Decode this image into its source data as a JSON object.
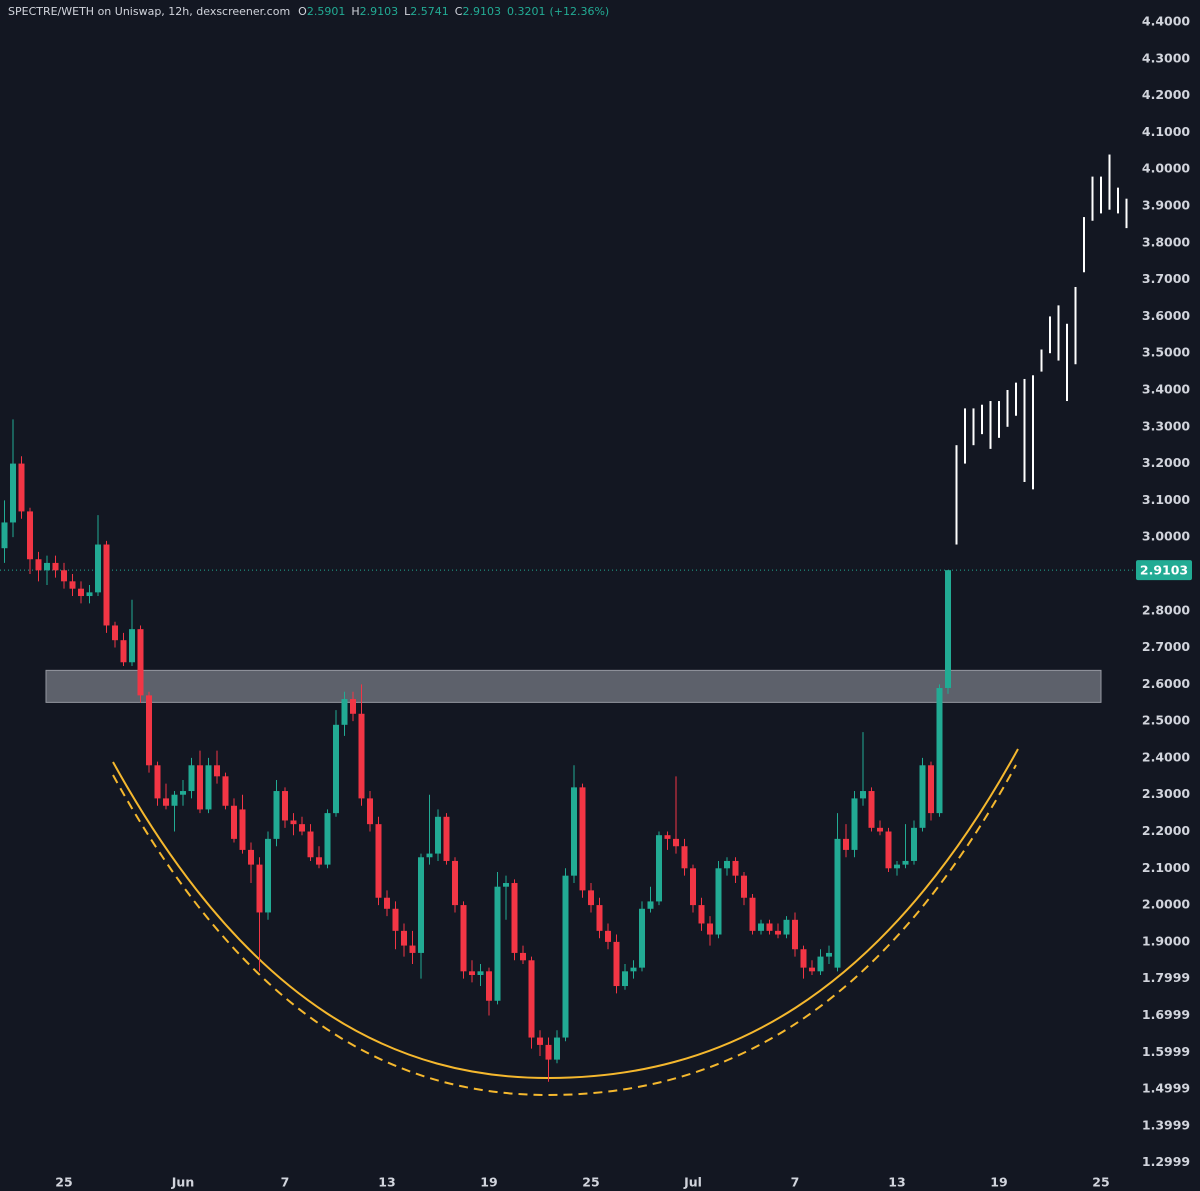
{
  "chart_data": {
    "type": "candlestick",
    "title": "SPECTRE/WETH on Uniswap, 12h, dexscreener.com",
    "ohlc_labels": [
      "O",
      "H",
      "L",
      "C"
    ],
    "change": 0.3201,
    "change_label": "(+12.36%)",
    "up_color": "#22ab94",
    "down_color": "#f23645",
    "projection_color": "#ffffff",
    "background": "#131722",
    "zone": [
      2.551,
      2.638
    ],
    "zone_color": "#6b6e78",
    "ylim": [
      1.28,
      4.46
    ],
    "yticks": [
      {
        "value": 4.4,
        "label": "4.4000"
      },
      {
        "value": 4.3,
        "label": "4.3000"
      },
      {
        "value": 4.2,
        "label": "4.2000"
      },
      {
        "value": 4.1,
        "label": "4.1000"
      },
      {
        "value": 4.0,
        "label": "4.0000"
      },
      {
        "value": 3.9,
        "label": "3.9000"
      },
      {
        "value": 3.8,
        "label": "3.8000"
      },
      {
        "value": 3.7,
        "label": "3.7000"
      },
      {
        "value": 3.6,
        "label": "3.6000"
      },
      {
        "value": 3.5,
        "label": "3.5000"
      },
      {
        "value": 3.4,
        "label": "3.4000"
      },
      {
        "value": 3.3,
        "label": "3.3000"
      },
      {
        "value": 3.2,
        "label": "3.2000"
      },
      {
        "value": 3.1,
        "label": "3.1000"
      },
      {
        "value": 3.0,
        "label": "3.0000"
      },
      {
        "value": 2.8,
        "label": "2.8000"
      },
      {
        "value": 2.7,
        "label": "2.7000"
      },
      {
        "value": 2.6,
        "label": "2.6000"
      },
      {
        "value": 2.5,
        "label": "2.5000"
      },
      {
        "value": 2.4,
        "label": "2.4000"
      },
      {
        "value": 2.3,
        "label": "2.3000"
      },
      {
        "value": 2.2,
        "label": "2.2000"
      },
      {
        "value": 2.1,
        "label": "2.1000"
      },
      {
        "value": 2.0,
        "label": "2.0000"
      },
      {
        "value": 1.9,
        "label": "1.9000"
      },
      1.7999,
      1.6999,
      1.5999,
      1.4999,
      1.3999,
      1.2999
    ],
    "categories": [
      null,
      null,
      null,
      null,
      null,
      null,
      null,
      "25",
      null,
      null,
      null,
      null,
      null,
      null,
      null,
      null,
      null,
      null,
      null,
      null,
      null,
      "Jun",
      null,
      null,
      null,
      null,
      null,
      null,
      null,
      null,
      null,
      null,
      null,
      "7",
      null,
      null,
      null,
      null,
      null,
      null,
      null,
      null,
      null,
      null,
      null,
      "13",
      null,
      null,
      null,
      null,
      null,
      null,
      null,
      null,
      null,
      null,
      null,
      "19",
      null,
      null,
      null,
      null,
      null,
      null,
      null,
      null,
      null,
      null,
      null,
      "25",
      null,
      null,
      null,
      null,
      null,
      null,
      null,
      null,
      null,
      null,
      null,
      "Jul",
      null,
      null,
      null,
      null,
      null,
      null,
      null,
      null,
      null,
      null,
      null,
      "7",
      null,
      null,
      null,
      null,
      null,
      null,
      null,
      null,
      null,
      null,
      null,
      "13",
      null,
      null,
      null,
      null,
      null,
      null,
      null,
      null,
      null,
      null,
      null,
      "19",
      null,
      null,
      null,
      null,
      null,
      null,
      null,
      null,
      null,
      null,
      null,
      "25",
      null,
      null,
      null
    ],
    "candles": [
      [
        2.97,
        3.1,
        2.93,
        3.04
      ],
      [
        3.04,
        3.32,
        3.0,
        3.2
      ],
      [
        3.2,
        3.22,
        3.05,
        3.07
      ],
      [
        3.07,
        3.08,
        2.9,
        2.94
      ],
      [
        2.94,
        2.96,
        2.88,
        2.91
      ],
      [
        2.91,
        2.95,
        2.87,
        2.93
      ],
      [
        2.93,
        2.95,
        2.89,
        2.91
      ],
      [
        2.91,
        2.93,
        2.86,
        2.88
      ],
      [
        2.88,
        2.9,
        2.84,
        2.86
      ],
      [
        2.86,
        2.88,
        2.82,
        2.84
      ],
      [
        2.84,
        2.87,
        2.82,
        2.85
      ],
      [
        2.85,
        3.06,
        2.84,
        2.98
      ],
      [
        2.98,
        2.99,
        2.74,
        2.76
      ],
      [
        2.76,
        2.77,
        2.7,
        2.72
      ],
      [
        2.72,
        2.74,
        2.65,
        2.66
      ],
      [
        2.66,
        2.83,
        2.65,
        2.75
      ],
      [
        2.75,
        2.76,
        2.55,
        2.57
      ],
      [
        2.57,
        2.58,
        2.36,
        2.38
      ],
      [
        2.38,
        2.39,
        2.27,
        2.29
      ],
      [
        2.29,
        2.33,
        2.26,
        2.27
      ],
      [
        2.27,
        2.31,
        2.2,
        2.3
      ],
      [
        2.3,
        2.34,
        2.27,
        2.31
      ],
      [
        2.31,
        2.4,
        2.29,
        2.38
      ],
      [
        2.38,
        2.42,
        2.25,
        2.26
      ],
      [
        2.26,
        2.4,
        2.25,
        2.38
      ],
      [
        2.38,
        2.42,
        2.33,
        2.35
      ],
      [
        2.35,
        2.36,
        2.26,
        2.27
      ],
      [
        2.27,
        2.29,
        2.17,
        2.18
      ],
      [
        2.26,
        2.3,
        2.14,
        2.15
      ],
      [
        2.15,
        2.17,
        2.06,
        2.11
      ],
      [
        2.11,
        2.13,
        1.82,
        1.98
      ],
      [
        1.98,
        2.2,
        1.96,
        2.18
      ],
      [
        2.18,
        2.34,
        2.16,
        2.31
      ],
      [
        2.31,
        2.32,
        2.21,
        2.23
      ],
      [
        2.23,
        2.25,
        2.19,
        2.22
      ],
      [
        2.22,
        2.24,
        2.19,
        2.2
      ],
      [
        2.2,
        2.22,
        2.12,
        2.13
      ],
      [
        2.13,
        2.16,
        2.1,
        2.11
      ],
      [
        2.11,
        2.26,
        2.1,
        2.25
      ],
      [
        2.25,
        2.53,
        2.24,
        2.49
      ],
      [
        2.49,
        2.58,
        2.46,
        2.56
      ],
      [
        2.56,
        2.58,
        2.5,
        2.52
      ],
      [
        2.52,
        2.6,
        2.27,
        2.29
      ],
      [
        2.29,
        2.31,
        2.2,
        2.22
      ],
      [
        2.22,
        2.24,
        2.0,
        2.02
      ],
      [
        2.02,
        2.04,
        1.97,
        1.99
      ],
      [
        1.99,
        2.01,
        1.88,
        1.93
      ],
      [
        1.93,
        1.95,
        1.86,
        1.89
      ],
      [
        1.89,
        1.93,
        1.84,
        1.87
      ],
      [
        1.87,
        2.14,
        1.8,
        2.13
      ],
      [
        2.13,
        2.3,
        2.11,
        2.14
      ],
      [
        2.14,
        2.26,
        2.12,
        2.24
      ],
      [
        2.24,
        2.25,
        2.11,
        2.12
      ],
      [
        2.12,
        2.13,
        1.98,
        2.0
      ],
      [
        2.0,
        2.01,
        1.8,
        1.82
      ],
      [
        1.82,
        1.85,
        1.79,
        1.81
      ],
      [
        1.81,
        1.84,
        1.78,
        1.82
      ],
      [
        1.82,
        1.83,
        1.7,
        1.74
      ],
      [
        1.74,
        2.09,
        1.73,
        2.05
      ],
      [
        2.05,
        2.08,
        1.96,
        2.06
      ],
      [
        2.06,
        2.07,
        1.85,
        1.87
      ],
      [
        1.87,
        1.89,
        1.84,
        1.85
      ],
      [
        1.85,
        1.86,
        1.61,
        1.64
      ],
      [
        1.64,
        1.66,
        1.59,
        1.62
      ],
      [
        1.62,
        1.64,
        1.52,
        1.58
      ],
      [
        1.58,
        1.66,
        1.57,
        1.64
      ],
      [
        1.64,
        2.1,
        1.63,
        2.08
      ],
      [
        2.08,
        2.38,
        2.06,
        2.32
      ],
      [
        2.32,
        2.33,
        2.02,
        2.04
      ],
      [
        2.04,
        2.06,
        1.98,
        2.0
      ],
      [
        2.0,
        2.02,
        1.91,
        1.93
      ],
      [
        1.93,
        1.95,
        1.88,
        1.9
      ],
      [
        1.9,
        1.92,
        1.76,
        1.78
      ],
      [
        1.78,
        1.84,
        1.77,
        1.82
      ],
      [
        1.82,
        1.85,
        1.8,
        1.83
      ],
      [
        1.83,
        2.01,
        1.82,
        1.99
      ],
      [
        1.99,
        2.05,
        1.98,
        2.01
      ],
      [
        2.01,
        2.2,
        2.0,
        2.19
      ],
      [
        2.19,
        2.2,
        2.15,
        2.18
      ],
      [
        2.18,
        2.35,
        2.14,
        2.16
      ],
      [
        2.16,
        2.18,
        2.08,
        2.1
      ],
      [
        2.1,
        2.11,
        1.98,
        2.0
      ],
      [
        2.0,
        2.02,
        1.93,
        1.95
      ],
      [
        1.95,
        1.97,
        1.89,
        1.92
      ],
      [
        1.92,
        2.12,
        1.91,
        2.1
      ],
      [
        2.1,
        2.13,
        2.08,
        2.12
      ],
      [
        2.12,
        2.13,
        2.06,
        2.08
      ],
      [
        2.08,
        2.09,
        2.0,
        2.02
      ],
      [
        2.02,
        2.03,
        1.92,
        1.93
      ],
      [
        1.93,
        1.96,
        1.92,
        1.95
      ],
      [
        1.95,
        1.96,
        1.92,
        1.93
      ],
      [
        1.93,
        1.95,
        1.91,
        1.92
      ],
      [
        1.92,
        1.97,
        1.91,
        1.96
      ],
      [
        1.96,
        1.98,
        1.86,
        1.88
      ],
      [
        1.88,
        1.89,
        1.8,
        1.83
      ],
      [
        1.83,
        1.85,
        1.81,
        1.82
      ],
      [
        1.82,
        1.88,
        1.81,
        1.86
      ],
      [
        1.86,
        1.89,
        1.84,
        1.87
      ],
      [
        1.83,
        2.25,
        1.82,
        2.18
      ],
      [
        2.18,
        2.22,
        2.13,
        2.15
      ],
      [
        2.15,
        2.31,
        2.13,
        2.29
      ],
      [
        2.29,
        2.47,
        2.27,
        2.31
      ],
      [
        2.31,
        2.32,
        2.2,
        2.21
      ],
      [
        2.21,
        2.23,
        2.19,
        2.2
      ],
      [
        2.2,
        2.21,
        2.09,
        2.1
      ],
      [
        2.1,
        2.12,
        2.08,
        2.11
      ],
      [
        2.11,
        2.22,
        2.1,
        2.12
      ],
      [
        2.12,
        2.23,
        2.11,
        2.21
      ],
      [
        2.21,
        2.4,
        2.2,
        2.38
      ],
      [
        2.38,
        2.39,
        2.23,
        2.25
      ],
      [
        2.25,
        2.6,
        2.24,
        2.59
      ],
      [
        2.5901,
        2.9103,
        2.5741,
        2.9103
      ],
      null,
      null,
      null,
      null,
      null,
      null,
      null,
      null,
      null,
      null,
      null,
      null,
      null,
      null,
      null,
      null,
      null,
      null,
      null,
      null,
      null
    ],
    "projection": [
      null,
      null,
      null,
      null,
      null,
      null,
      null,
      null,
      null,
      null,
      null,
      null,
      null,
      null,
      null,
      null,
      null,
      null,
      null,
      null,
      null,
      null,
      null,
      null,
      null,
      null,
      null,
      null,
      null,
      null,
      null,
      null,
      null,
      null,
      null,
      null,
      null,
      null,
      null,
      null,
      null,
      null,
      null,
      null,
      null,
      null,
      null,
      null,
      null,
      null,
      null,
      null,
      null,
      null,
      null,
      null,
      null,
      null,
      null,
      null,
      null,
      null,
      null,
      null,
      null,
      null,
      null,
      null,
      null,
      null,
      null,
      null,
      null,
      null,
      null,
      null,
      null,
      null,
      null,
      null,
      null,
      null,
      null,
      null,
      null,
      null,
      null,
      null,
      null,
      null,
      null,
      null,
      null,
      null,
      null,
      null,
      null,
      null,
      null,
      null,
      null,
      null,
      null,
      null,
      null,
      null,
      null,
      null,
      null,
      null,
      null,
      null,
      [
        2.98,
        3.25
      ],
      [
        3.2,
        3.35
      ],
      [
        3.25,
        3.35
      ],
      [
        3.28,
        3.36
      ],
      [
        3.24,
        3.37
      ],
      [
        3.27,
        3.37
      ],
      [
        3.3,
        3.4
      ],
      [
        3.33,
        3.42
      ],
      [
        3.15,
        3.43
      ],
      [
        3.13,
        3.44
      ],
      [
        3.45,
        3.51
      ],
      [
        3.5,
        3.6
      ],
      [
        3.48,
        3.63
      ],
      [
        3.37,
        3.58
      ],
      [
        3.47,
        3.68
      ],
      [
        3.72,
        3.87
      ],
      [
        3.86,
        3.98
      ],
      [
        3.88,
        3.98
      ],
      [
        3.89,
        4.04
      ],
      [
        3.88,
        3.95
      ],
      [
        3.84,
        3.92
      ]
    ]
  }
}
